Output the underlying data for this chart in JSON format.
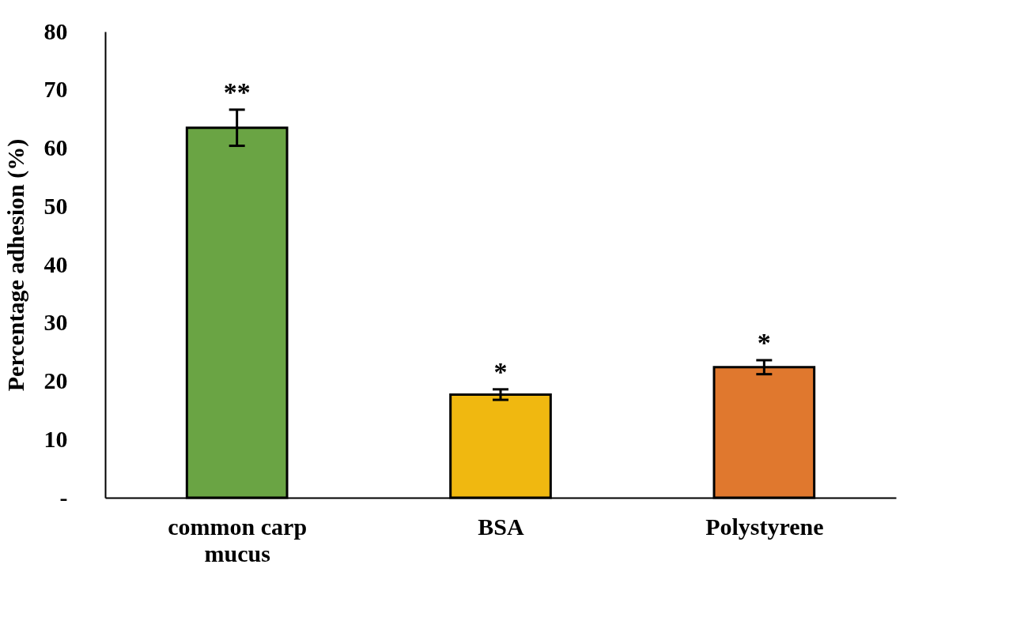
{
  "chart_data": {
    "type": "bar",
    "ylabel": "Percentage adhesion (%)",
    "categories": [
      "common carp mucus",
      "BSA",
      "Polystyrene"
    ],
    "values": [
      63.5,
      17.7,
      22.4
    ],
    "colors": [
      "#6aa444",
      "#f0b810",
      "#e0782e"
    ],
    "errors": [
      3.1,
      0.9,
      1.2
    ],
    "ylim": [
      0,
      80
    ],
    "yticks": [
      {
        "value": 0,
        "label": "-"
      },
      10,
      20,
      30,
      40,
      50,
      60,
      70,
      80
    ],
    "grid": false,
    "annotations": [
      "**",
      "*",
      "*"
    ]
  }
}
